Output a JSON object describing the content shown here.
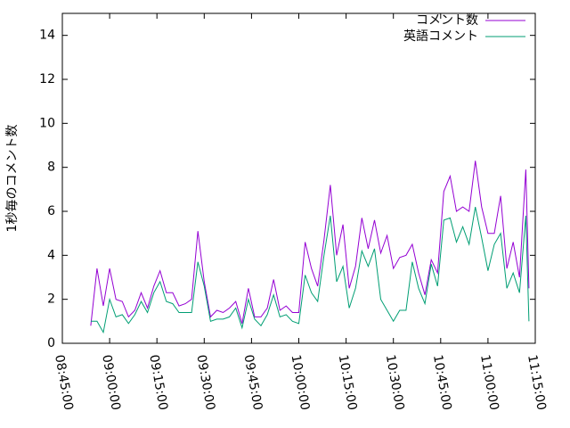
{
  "chart_data": {
    "type": "line",
    "ylabel": "1秒毎のコメント数",
    "x": [
      "08:54:00",
      "08:56:00",
      "08:58:00",
      "09:00:00",
      "09:02:00",
      "09:04:00",
      "09:06:00",
      "09:08:00",
      "09:10:00",
      "09:12:00",
      "09:14:00",
      "09:16:00",
      "09:18:00",
      "09:20:00",
      "09:22:00",
      "09:24:00",
      "09:26:00",
      "09:28:00",
      "09:30:00",
      "09:32:00",
      "09:34:00",
      "09:36:00",
      "09:38:00",
      "09:40:00",
      "09:42:00",
      "09:44:00",
      "09:46:00",
      "09:48:00",
      "09:50:00",
      "09:52:00",
      "09:54:00",
      "09:56:00",
      "09:58:00",
      "10:00:00",
      "10:02:00",
      "10:04:00",
      "10:06:00",
      "10:08:00",
      "10:10:00",
      "10:12:00",
      "10:14:00",
      "10:16:00",
      "10:18:00",
      "10:20:00",
      "10:22:00",
      "10:24:00",
      "10:26:00",
      "10:28:00",
      "10:30:00",
      "10:32:00",
      "10:34:00",
      "10:36:00",
      "10:38:00",
      "10:40:00",
      "10:42:00",
      "10:44:00",
      "10:46:00",
      "10:48:00",
      "10:50:00",
      "10:52:00",
      "10:54:00",
      "10:56:00",
      "10:58:00",
      "11:00:00",
      "11:02:00",
      "11:04:00",
      "11:06:00",
      "11:08:00",
      "11:10:00",
      "11:12:00",
      "11:13:00"
    ],
    "series": [
      {
        "name": "コメント数",
        "color": "#9400d3",
        "values": [
          0.8,
          3.4,
          1.7,
          3.4,
          2.0,
          1.9,
          1.2,
          1.5,
          2.3,
          1.6,
          2.6,
          3.3,
          2.3,
          2.3,
          1.7,
          1.8,
          2.0,
          5.1,
          2.8,
          1.2,
          1.5,
          1.4,
          1.6,
          1.9,
          0.9,
          2.5,
          1.2,
          1.2,
          1.6,
          2.9,
          1.5,
          1.7,
          1.4,
          1.4,
          4.6,
          3.4,
          2.6,
          4.7,
          7.2,
          4.0,
          5.4,
          2.5,
          3.5,
          5.7,
          4.3,
          5.6,
          4.1,
          4.9,
          3.4,
          3.9,
          4.0,
          4.5,
          3.2,
          2.2,
          3.8,
          3.2,
          6.9,
          7.6,
          6.0,
          6.2,
          6.0,
          8.3,
          6.2,
          5.0,
          5.0,
          6.7,
          3.4,
          4.6,
          3.0,
          7.9,
          2.5
        ]
      },
      {
        "name": "英語コメント",
        "color": "#009e73",
        "values": [
          1.0,
          1.0,
          0.5,
          2.0,
          1.2,
          1.3,
          0.9,
          1.3,
          1.9,
          1.4,
          2.3,
          2.8,
          1.9,
          1.8,
          1.4,
          1.4,
          1.4,
          3.7,
          2.6,
          1.0,
          1.1,
          1.1,
          1.2,
          1.6,
          0.7,
          2.0,
          1.1,
          0.8,
          1.3,
          2.2,
          1.2,
          1.3,
          1.0,
          0.9,
          3.1,
          2.3,
          1.9,
          4.0,
          5.8,
          2.8,
          3.5,
          1.6,
          2.5,
          4.2,
          3.5,
          4.3,
          2.0,
          1.5,
          1.0,
          1.5,
          1.5,
          3.7,
          2.5,
          1.8,
          3.6,
          2.6,
          5.6,
          5.7,
          4.6,
          5.3,
          4.5,
          6.2,
          4.8,
          3.3,
          4.5,
          5.0,
          2.5,
          3.2,
          2.3,
          5.8,
          1.0
        ]
      }
    ],
    "xlim": [
      "08:45:00",
      "11:15:00"
    ],
    "xticks": [
      "08:45:00",
      "09:00:00",
      "09:15:00",
      "09:30:00",
      "09:45:00",
      "10:00:00",
      "10:15:00",
      "10:30:00",
      "10:45:00",
      "11:00:00",
      "11:15:00"
    ],
    "ylim": [
      0,
      15
    ],
    "yticks": [
      0,
      2,
      4,
      6,
      8,
      10,
      12,
      14
    ],
    "legend": "top-right"
  }
}
